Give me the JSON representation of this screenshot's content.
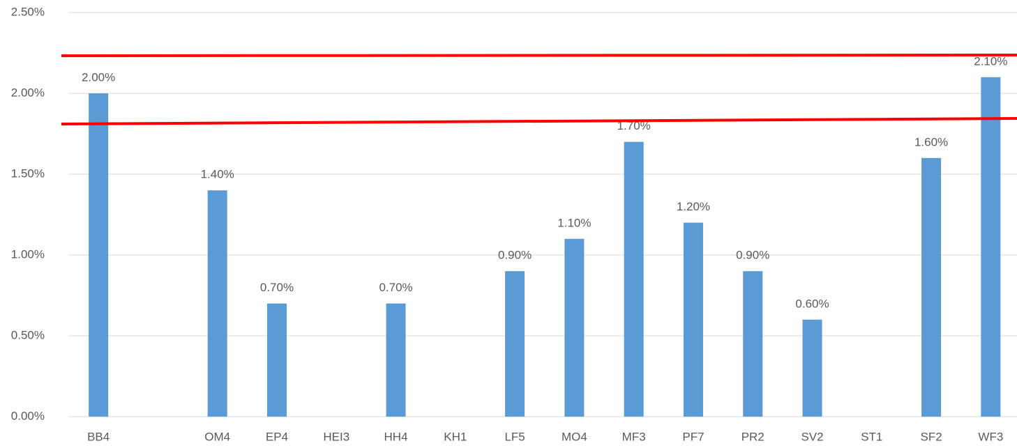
{
  "chart_data": {
    "type": "bar",
    "categories": [
      "BB4",
      null,
      "OM4",
      "EP4",
      "HEI3",
      "HH4",
      "KH1",
      "LF5",
      "MO4",
      "MF3",
      "PF7",
      "PR2",
      "SV2",
      "ST1",
      "SF2",
      "WF3"
    ],
    "values": [
      2.0,
      null,
      1.4,
      0.7,
      null,
      0.7,
      null,
      0.9,
      1.1,
      1.7,
      1.2,
      0.9,
      0.6,
      null,
      1.6,
      2.1
    ],
    "value_labels": [
      "2.00%",
      null,
      "1.40%",
      "0.70%",
      null,
      "0.70%",
      null,
      "0.90%",
      "1.10%",
      "1.70%",
      "1.20%",
      "0.90%",
      "0.60%",
      null,
      "1.60%",
      "2.10%"
    ],
    "color": "#5b9bd5",
    "ylim": [
      0,
      2.5
    ],
    "yticks": [
      {
        "value": 0,
        "label": "0.00%"
      },
      {
        "value": 0.5,
        "label": "0.50%"
      },
      {
        "value": 1.0,
        "label": "1.00%"
      },
      {
        "value": 1.5,
        "label": "1.50%"
      },
      {
        "value": 2.0,
        "label": "2.00%"
      },
      {
        "value": 2.5,
        "label": "2.50%"
      }
    ],
    "grid": true
  }
}
